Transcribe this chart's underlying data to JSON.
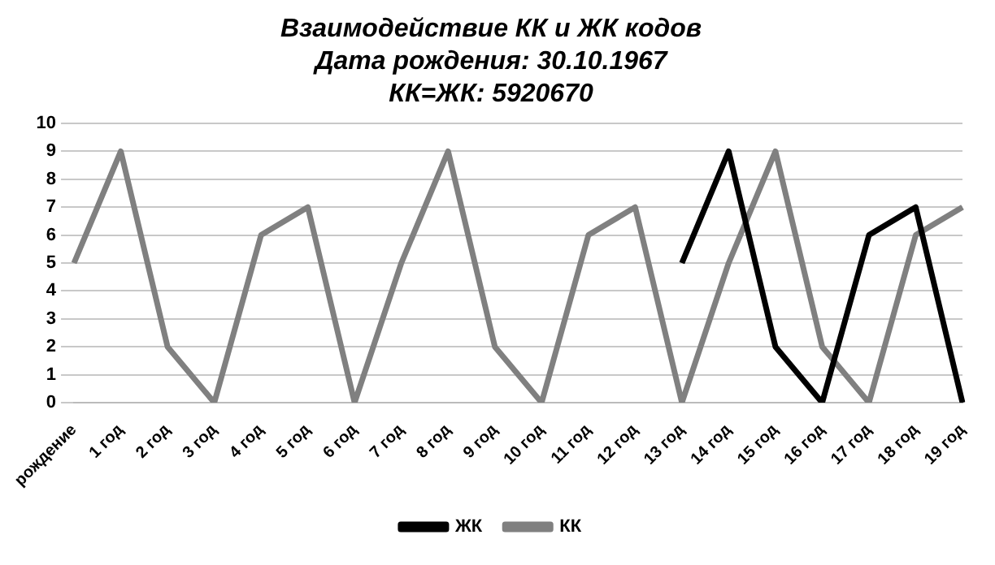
{
  "chart_data": {
    "type": "line",
    "title": "Взаимодействие КК и ЖК кодов",
    "subtitle": "Дата рождения: 30.10.1967",
    "annotations": [
      "КК=ЖК: 5920670"
    ],
    "categories": [
      "рождение",
      "1 год",
      "2 год",
      "3 год",
      "4 год",
      "5 год",
      "6 год",
      "7 год",
      "8 год",
      "9 год",
      "10 год",
      "11 год",
      "12 год",
      "13 год",
      "14 год",
      "15 год",
      "16 год",
      "17 год",
      "18 год",
      "19 год"
    ],
    "series": [
      {
        "name": "ЖК",
        "color": "#000000",
        "values": [
          null,
          null,
          null,
          null,
          null,
          null,
          null,
          null,
          null,
          null,
          null,
          null,
          null,
          5,
          9,
          2,
          0,
          6,
          7,
          0
        ]
      },
      {
        "name": "КК",
        "color": "#808080",
        "values": [
          5,
          9,
          2,
          0,
          6,
          7,
          0,
          5,
          9,
          2,
          0,
          6,
          7,
          0,
          5,
          9,
          2,
          0,
          6,
          7
        ]
      }
    ],
    "ylim": [
      0,
      10
    ],
    "yticks": [
      0,
      1,
      2,
      3,
      4,
      5,
      6,
      7,
      8,
      9,
      10
    ],
    "grid": "y",
    "legend": "bottom",
    "marker": "none",
    "line_style": "solid"
  }
}
